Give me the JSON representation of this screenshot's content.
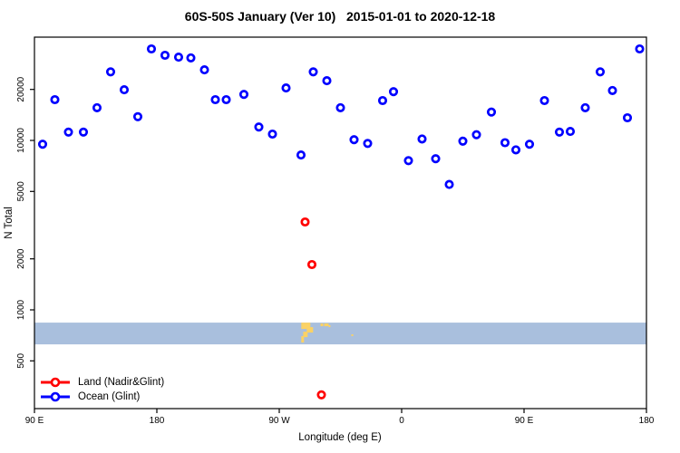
{
  "title": "60S-50S January (Ver 10)   2015-01-01 to 2020-12-18",
  "chart_data": {
    "type": "scatter",
    "title": "60S-50S January (Ver 10)   2015-01-01 to 2020-12-18",
    "xlabel": "Longitude (deg E)",
    "ylabel": "N Total",
    "y_scale": "log",
    "y_ticks": [
      500,
      1000,
      2000,
      5000,
      10000,
      20000
    ],
    "y_range": [
      280,
      41000
    ],
    "x_range_deg": [
      90,
      540
    ],
    "x_ticks": [
      {
        "deg": 90,
        "label": "90 E"
      },
      {
        "deg": 180,
        "label": "180"
      },
      {
        "deg": 270,
        "label": "90 W"
      },
      {
        "deg": 360,
        "label": "0"
      },
      {
        "deg": 450,
        "label": "90 E"
      },
      {
        "deg": 540,
        "label": "180"
      }
    ],
    "grid": false,
    "series": [
      {
        "name": "Ocean (Glint)",
        "color": "#0000ff",
        "marker": "open-circle",
        "points": [
          [
            96,
            9500
          ],
          [
            105,
            17400
          ],
          [
            115,
            11200
          ],
          [
            126,
            11200
          ],
          [
            136,
            15600
          ],
          [
            146,
            25400
          ],
          [
            156,
            19900
          ],
          [
            166,
            13800
          ],
          [
            176,
            34700
          ],
          [
            186,
            31800
          ],
          [
            196,
            31000
          ],
          [
            205,
            30700
          ],
          [
            215,
            26100
          ],
          [
            223,
            17400
          ],
          [
            231,
            17400
          ],
          [
            244,
            18700
          ],
          [
            255,
            12000
          ],
          [
            265,
            10900
          ],
          [
            275,
            20400
          ],
          [
            286,
            8200
          ],
          [
            295,
            25400
          ],
          [
            305,
            22500
          ],
          [
            315,
            15600
          ],
          [
            325,
            10100
          ],
          [
            335,
            9600
          ],
          [
            346,
            17200
          ],
          [
            354,
            19400
          ],
          [
            365,
            7600
          ],
          [
            375,
            10200
          ],
          [
            385,
            7800
          ],
          [
            395,
            5500
          ],
          [
            405,
            9900
          ],
          [
            415,
            10800
          ],
          [
            426,
            14700
          ],
          [
            436,
            9700
          ],
          [
            444,
            8800
          ],
          [
            454,
            9500
          ],
          [
            465,
            17200
          ],
          [
            476,
            11200
          ],
          [
            484,
            11300
          ],
          [
            495,
            15600
          ],
          [
            506,
            25400
          ],
          [
            515,
            19700
          ],
          [
            526,
            13600
          ],
          [
            535,
            34700
          ]
        ]
      },
      {
        "name": "Land (Nadir&Glint)",
        "color": "#ff0000",
        "marker": "open-circle",
        "points": [
          [
            289,
            3300
          ],
          [
            294,
            1850
          ],
          [
            301,
            315
          ]
        ]
      }
    ],
    "map_strip": {
      "description": "latitude-band land/ocean strip",
      "ocean_color": "#a9bfdd",
      "land_color": "#fbd265",
      "n_range": [
        626,
        841
      ],
      "land_patches": [
        [
          286.2,
          292.9,
          0.0,
          0.29
        ],
        [
          290.2,
          294.9,
          0.21,
          0.46
        ],
        [
          287.6,
          290.9,
          0.42,
          0.67
        ],
        [
          286.2,
          288.2,
          0.62,
          0.92
        ],
        [
          300.3,
          302.3,
          0.04,
          0.17
        ],
        [
          303.0,
          306.3,
          0.04,
          0.17
        ],
        [
          306.3,
          307.6,
          0.12,
          0.21
        ],
        [
          323.0,
          324.4,
          0.54,
          0.62
        ]
      ]
    },
    "legend": {
      "position": "bottom-left",
      "entries": [
        {
          "label": "Land (Nadir&Glint)",
          "color": "#ff0000"
        },
        {
          "label": "Ocean (Glint)",
          "color": "#0000ff"
        }
      ]
    },
    "axis_color": "#000000"
  }
}
